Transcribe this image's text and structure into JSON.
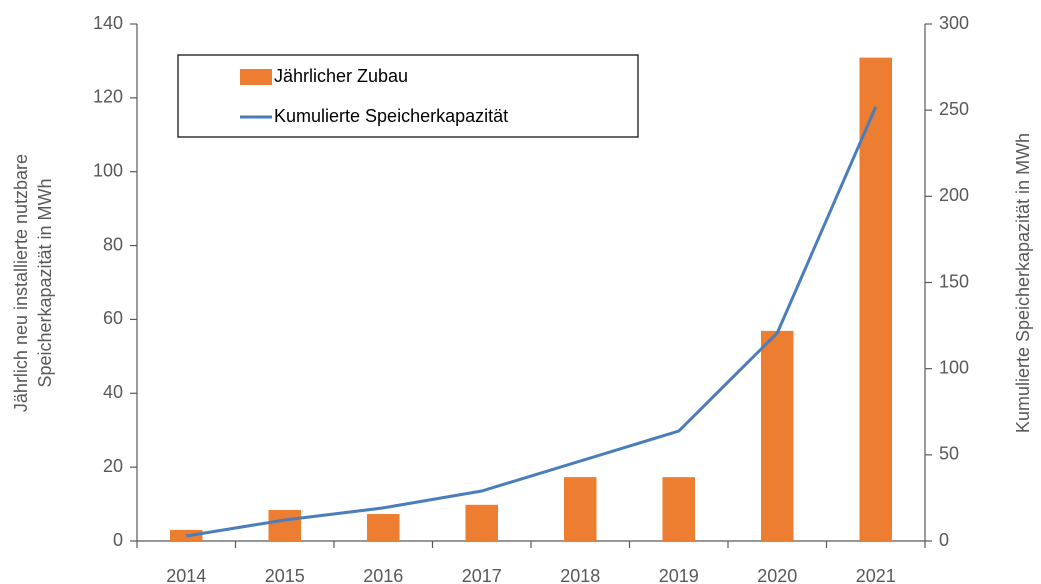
{
  "chart_data": {
    "type": "bar_line",
    "categories": [
      "2014",
      "2015",
      "2016",
      "2017",
      "2018",
      "2019",
      "2020",
      "2021"
    ],
    "series": [
      {
        "name": "Jährlicher Zubau",
        "color": "#ed7d31",
        "type": "bar",
        "values": [
          3,
          8.4,
          7.3,
          9.8,
          17.3,
          17.3,
          56.9,
          130.9
        ]
      },
      {
        "name": "Kumulierte Speicherkapazität",
        "color": "#4a7ebb",
        "type": "line",
        "axis": "y2",
        "values": [
          2.9,
          12.2,
          19.2,
          29,
          46.4,
          63.8,
          120.7,
          251.9
        ]
      }
    ],
    "ylabel": [
      "Jährlich neu installierte nutzbare",
      "Speicherkapazität in MWh"
    ],
    "y2label": "Kumulierte Speicherkapazität in MWh",
    "ylim": [
      0,
      140
    ],
    "yticks": [
      0,
      20,
      40,
      60,
      80,
      100,
      120,
      140
    ],
    "y2lim": [
      0,
      300
    ],
    "y2ticks": [
      0,
      50,
      100,
      150,
      200,
      250,
      300
    ],
    "legend": "upper left"
  }
}
